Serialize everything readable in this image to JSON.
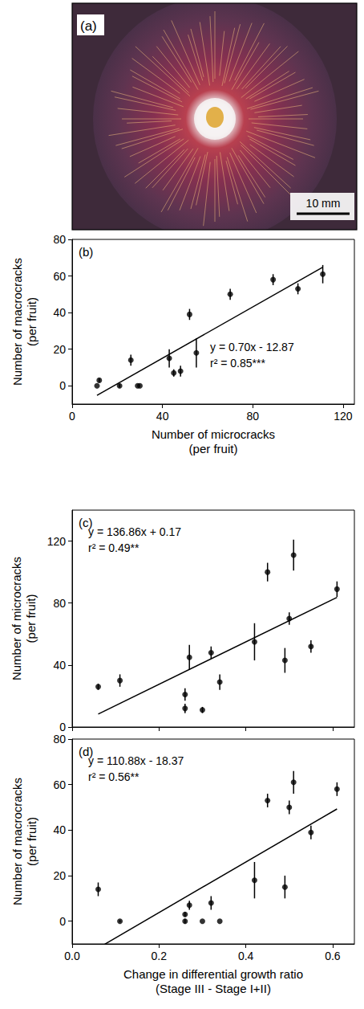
{
  "image_panel": {
    "label": "(a)",
    "scale_bar": "10 mm"
  },
  "chart_data": [
    {
      "type": "scatter",
      "panel": "(b)",
      "xlabel": "Number of microcracks (per fruit)",
      "ylabel": "Number of macrocracks (per fruit)",
      "x": [
        26,
        30,
        21,
        12,
        45,
        11,
        48,
        29,
        55,
        100,
        43,
        70,
        111,
        52,
        89
      ],
      "values": [
        14,
        0,
        0,
        3,
        7,
        0,
        8,
        0,
        18,
        53,
        15,
        50,
        61,
        39,
        58
      ],
      "errors": [
        3,
        0,
        1,
        1,
        2,
        0,
        3,
        0,
        8,
        3,
        5,
        3,
        5,
        3,
        3
      ],
      "fit_line": {
        "x": [
          11,
          111
        ],
        "y": [
          -5.2,
          64.8
        ]
      },
      "annotations": [
        "y = 0.70x - 12.87",
        "r² = 0.85***"
      ],
      "xlim": [
        0,
        125
      ],
      "xticks": [
        0,
        40,
        80,
        120
      ],
      "ylim": [
        -10,
        80
      ],
      "yticks": [
        0,
        20,
        40,
        60,
        80
      ],
      "color": "#000000",
      "marker": "circle",
      "grid": false
    },
    {
      "type": "scatter",
      "panel": "(c)",
      "ylabel": "Number of microcracks (per fruit)",
      "x": [
        0.06,
        0.11,
        0.26,
        0.26,
        0.27,
        0.3,
        0.32,
        0.34,
        0.42,
        0.45,
        0.49,
        0.5,
        0.51,
        0.55,
        0.61
      ],
      "values": [
        26,
        30,
        21,
        12,
        45,
        11,
        48,
        29,
        55,
        100,
        43,
        70,
        111,
        52,
        89
      ],
      "errors": [
        2,
        4,
        4,
        3,
        8,
        2,
        4,
        5,
        12,
        6,
        8,
        4,
        10,
        4,
        5
      ],
      "fit_line": {
        "x": [
          0.06,
          0.61
        ],
        "y": [
          8.4,
          83.7
        ]
      },
      "annotations": [
        "y = 136.86x + 0.17",
        "r² = 0.49**"
      ],
      "xlim": [
        0,
        0.65
      ],
      "xticks": [
        0,
        0.2,
        0.4,
        0.6
      ],
      "ylim": [
        0,
        140
      ],
      "yticks": [
        0,
        40,
        80,
        120
      ],
      "tick_labels": "y",
      "color": "#000000",
      "marker": "circle",
      "grid": false
    },
    {
      "type": "scatter",
      "panel": "(d)",
      "xlabel": "Change in differential growth ratio (Stage III - Stage I+II)",
      "ylabel": "Number of macrocracks (per fruit)",
      "x": [
        0.06,
        0.11,
        0.26,
        0.26,
        0.27,
        0.3,
        0.32,
        0.34,
        0.42,
        0.45,
        0.49,
        0.5,
        0.51,
        0.55,
        0.61
      ],
      "values": [
        14,
        0,
        0,
        3,
        7,
        0,
        8,
        0,
        18,
        53,
        15,
        50,
        61,
        39,
        58
      ],
      "errors": [
        3,
        0.5,
        1,
        1,
        2,
        0,
        3,
        0,
        8,
        3,
        5,
        3,
        5,
        3,
        3
      ],
      "fit_line": {
        "x": [
          0.075,
          0.61
        ],
        "y": [
          -10.1,
          49.3
        ]
      },
      "annotations": [
        "y = 110.88x - 18.37",
        "r² = 0.56**"
      ],
      "xlim": [
        0,
        0.65
      ],
      "xticks": [
        {
          "value": 0,
          "label": "0.0"
        },
        0.2,
        0.4,
        0.6
      ],
      "ylim": [
        -10,
        80
      ],
      "yticks": [
        0,
        20,
        40,
        60,
        80
      ],
      "color": "#000000",
      "marker": "circle",
      "grid": false
    }
  ]
}
